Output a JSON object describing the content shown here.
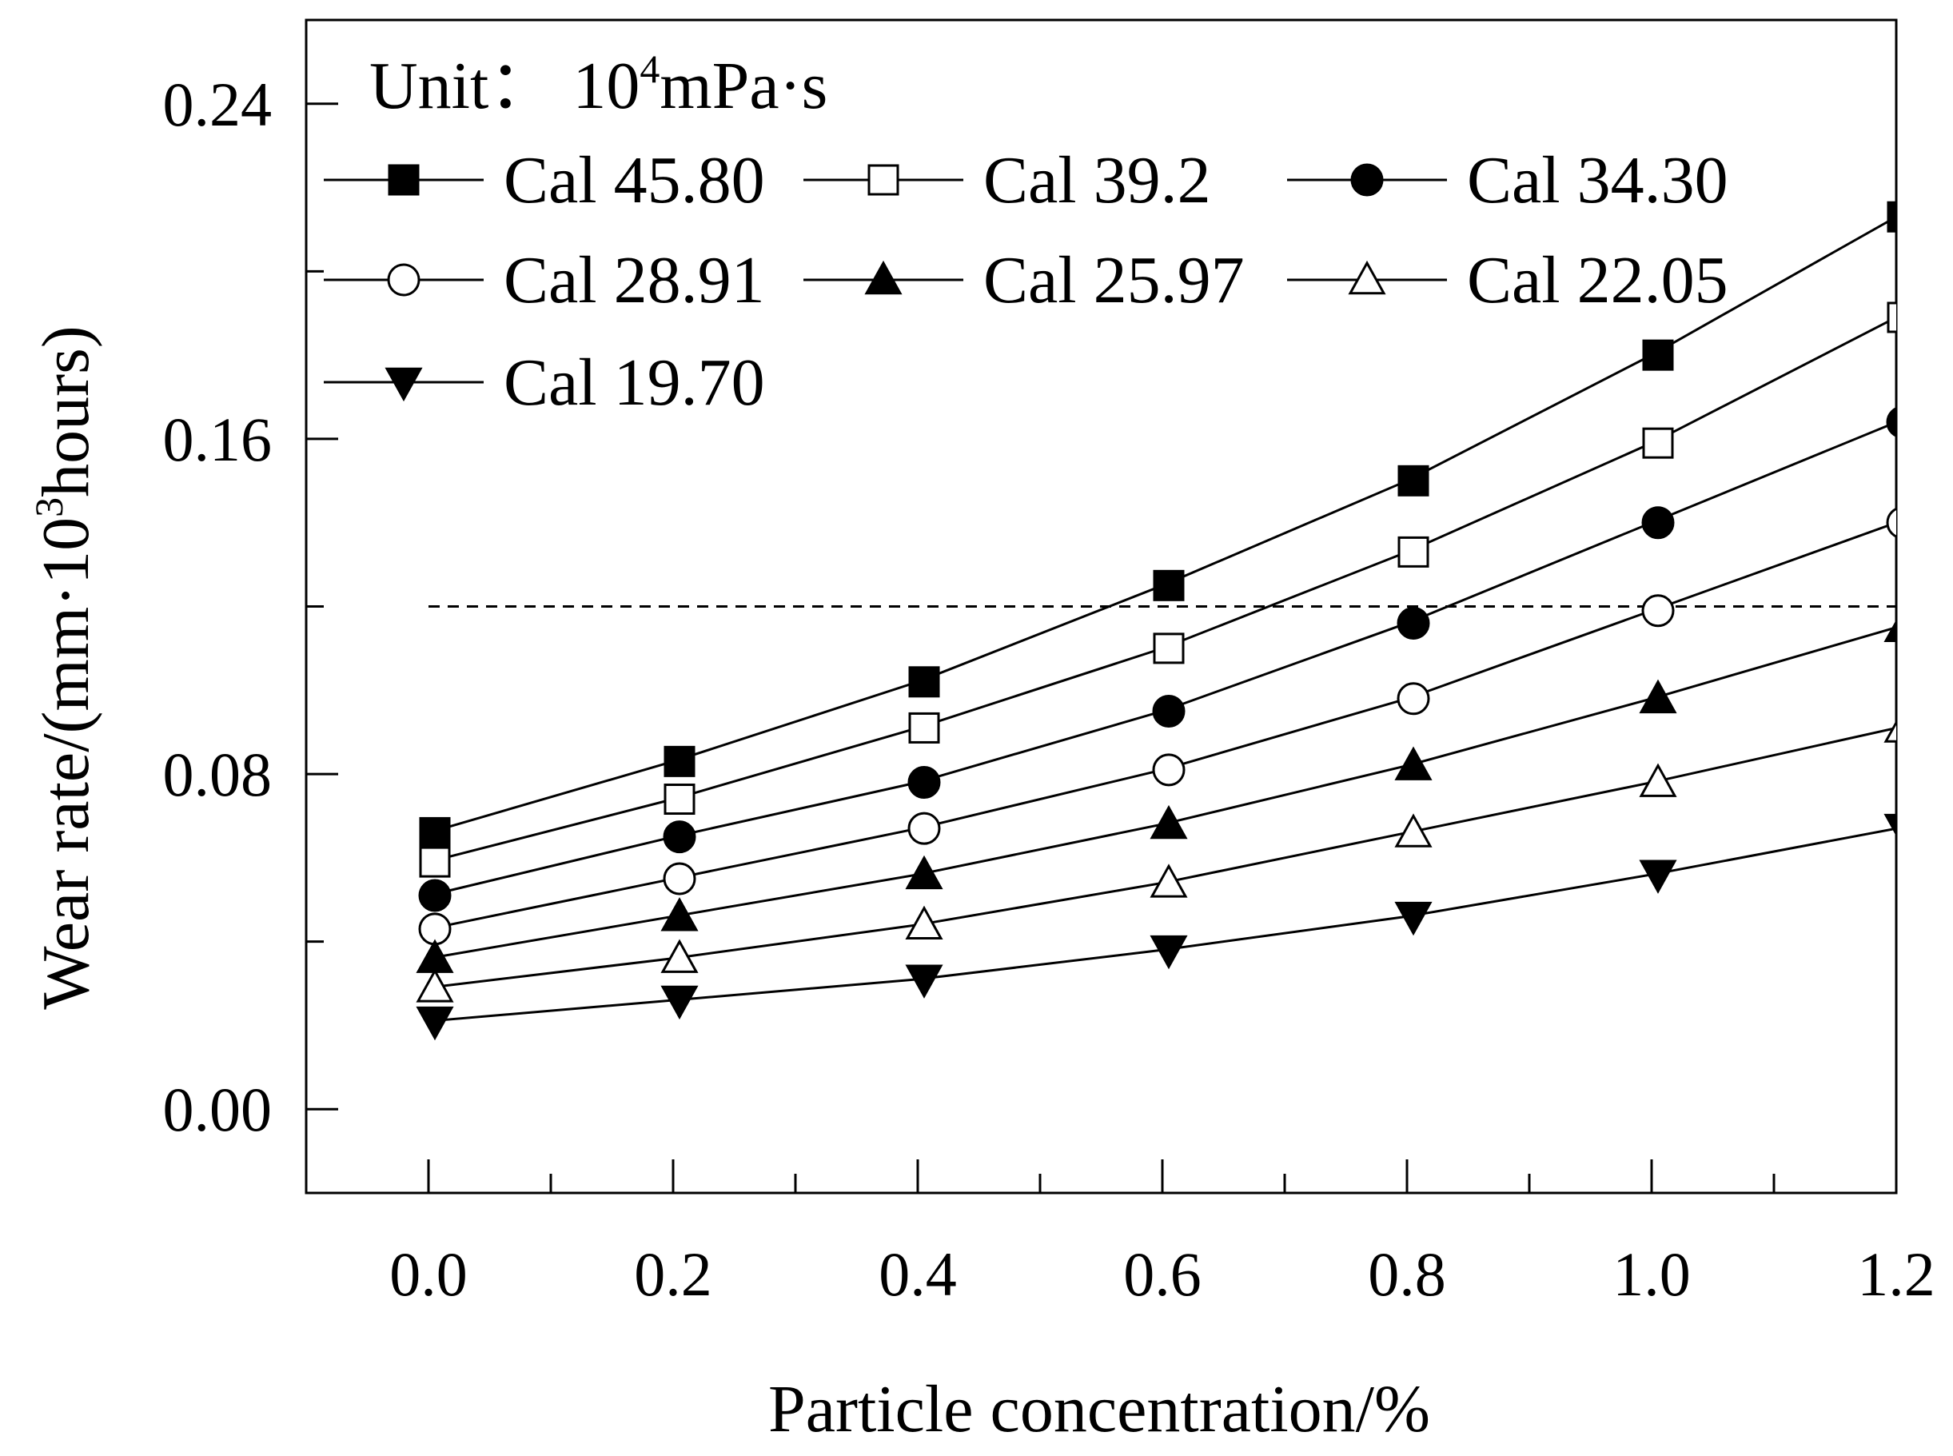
{
  "chart_data": {
    "type": "line",
    "xlabel": "Particle concentration/%",
    "ylabel": {
      "prefix": "Wear rate/(mm·10",
      "sup": "3",
      "suffix": "hours)"
    },
    "unit_note": {
      "prefix": "Unit：  10",
      "sup": "4",
      "suffix": "mPa·s"
    },
    "xlim": [
      -0.1,
      1.2
    ],
    "ylim": [
      -0.02,
      0.26
    ],
    "xticks": [
      0.0,
      0.2,
      0.4,
      0.6,
      0.8,
      1.0,
      1.2
    ],
    "xtick_labels": [
      "0.0",
      "0.2",
      "0.4",
      "0.6",
      "0.8",
      "1.0",
      "1.2"
    ],
    "yticks": [
      0.0,
      0.08,
      0.16,
      0.24
    ],
    "ytick_labels": [
      "0.00",
      "0.08",
      "0.16",
      "0.24"
    ],
    "reference_line": {
      "y": 0.12,
      "style": "dashed",
      "x_from": 0.0,
      "x_to": 1.2
    },
    "x": [
      0.0,
      0.2,
      0.4,
      0.6,
      0.8,
      1.0,
      1.2
    ],
    "series": [
      {
        "name": "Cal 45.80",
        "marker": "square-filled",
        "values": [
          0.066,
          0.083,
          0.102,
          0.125,
          0.15,
          0.18,
          0.213
        ]
      },
      {
        "name": "Cal 39.2",
        "marker": "square-open",
        "values": [
          0.059,
          0.074,
          0.091,
          0.11,
          0.133,
          0.159,
          0.189
        ]
      },
      {
        "name": "Cal 34.30",
        "marker": "circle-filled",
        "values": [
          0.051,
          0.065,
          0.078,
          0.095,
          0.116,
          0.14,
          0.164
        ]
      },
      {
        "name": "Cal 28.91",
        "marker": "circle-open",
        "values": [
          0.043,
          0.055,
          0.067,
          0.081,
          0.098,
          0.119,
          0.14
        ]
      },
      {
        "name": "Cal 25.97",
        "marker": "triangle-up-filled",
        "values": [
          0.036,
          0.046,
          0.056,
          0.068,
          0.082,
          0.098,
          0.115
        ]
      },
      {
        "name": "Cal 22.05",
        "marker": "triangle-up-open",
        "values": [
          0.029,
          0.036,
          0.044,
          0.054,
          0.066,
          0.078,
          0.091
        ]
      },
      {
        "name": "Cal 19.70",
        "marker": "triangle-down-filled",
        "values": [
          0.021,
          0.026,
          0.031,
          0.038,
          0.046,
          0.056,
          0.067
        ]
      }
    ],
    "legend": {
      "position": "top-left",
      "columns": 3
    }
  },
  "colors": {
    "ink": "#000000",
    "background": "#ffffff"
  }
}
